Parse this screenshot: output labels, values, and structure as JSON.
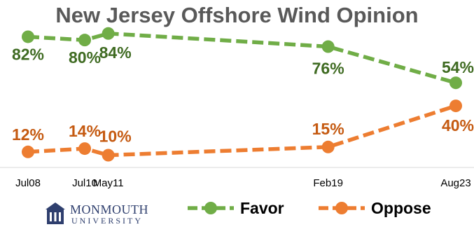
{
  "title": "New Jersey Offshore Wind Opinion",
  "logo": {
    "line1": "MONMOUTH",
    "line2": "UNIVERSITY",
    "icon": "university-seal-icon"
  },
  "chart_data": {
    "type": "line",
    "categories": [
      "Jul08",
      "Jul10",
      "May11",
      "Feb19",
      "Aug23"
    ],
    "series": [
      {
        "name": "Favor",
        "values": [
          82,
          80,
          84,
          76,
          54
        ],
        "labels": [
          "82%",
          "80%",
          "84%",
          "76%",
          "54%"
        ],
        "color": "#70ad47",
        "label_color": "#3f6b22"
      },
      {
        "name": "Oppose",
        "values": [
          12,
          14,
          10,
          15,
          40
        ],
        "labels": [
          "12%",
          "14%",
          "10%",
          "15%",
          "40%"
        ],
        "color": "#ed7d31",
        "label_color": "#c55a11"
      }
    ],
    "line_style": "dashed",
    "grid": false,
    "legend": "bottom"
  }
}
